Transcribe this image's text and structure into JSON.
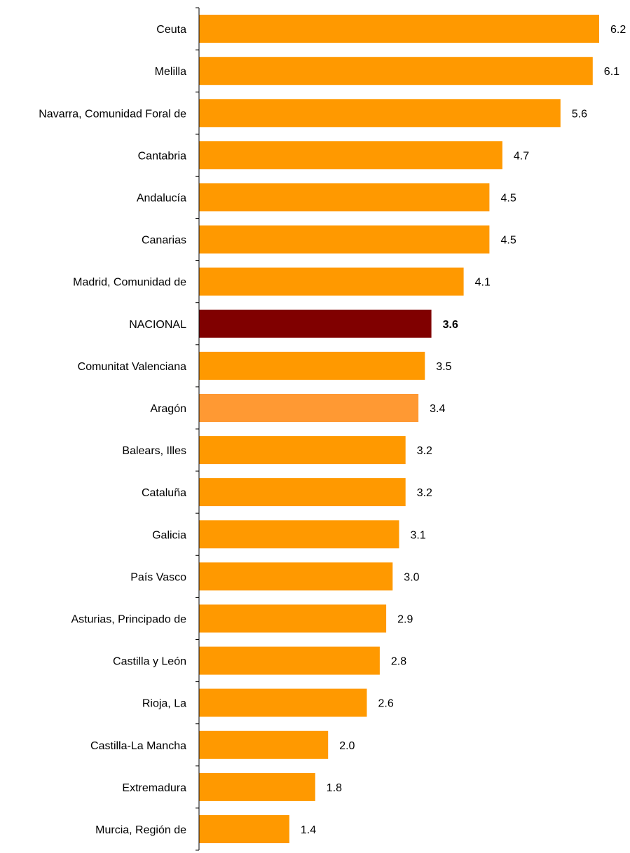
{
  "chart_data": {
    "type": "bar",
    "orientation": "horizontal",
    "categories": [
      "Ceuta",
      "Melilla",
      "Navarra, Comunidad Foral de",
      "Cantabria",
      "Andalucía",
      "Canarias",
      "Madrid, Comunidad de",
      "NACIONAL",
      "Comunitat Valenciana",
      "Aragón",
      "Balears, Illes",
      "Cataluña",
      "Galicia",
      "País Vasco",
      "Asturias, Principado de",
      "Castilla y León",
      "Rioja, La",
      "Castilla-La Mancha",
      "Extremadura",
      "Murcia, Región de"
    ],
    "values": [
      6.2,
      6.1,
      5.6,
      4.7,
      4.5,
      4.5,
      4.1,
      3.6,
      3.5,
      3.4,
      3.2,
      3.2,
      3.1,
      3.0,
      2.9,
      2.8,
      2.6,
      2.0,
      1.8,
      1.4
    ],
    "value_labels": [
      "6.2",
      "6.1",
      "5.6",
      "4.7",
      "4.5",
      "4.5",
      "4.1",
      "3.6",
      "3.5",
      "3.4",
      "3.2",
      "3.2",
      "3.1",
      "3.0",
      "2.9",
      "2.8",
      "2.6",
      "2.0",
      "1.8",
      "1.4"
    ],
    "highlights": {
      "NACIONAL": "national",
      "Aragón": "region"
    },
    "colors": {
      "default": "#FF9900",
      "national": "#800000",
      "region": "#FF9933"
    },
    "title": "",
    "xlabel": "",
    "ylabel": "",
    "xlim": [
      0,
      6.4
    ],
    "grid": false,
    "legend": "none"
  }
}
